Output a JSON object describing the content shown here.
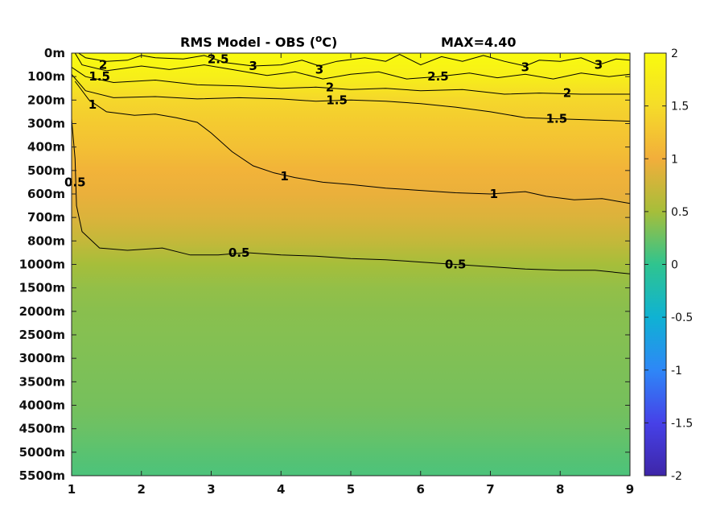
{
  "chart_data": {
    "type": "heatmap",
    "title": {
      "main": "RMS Model - OBS (",
      "sup": "o",
      "unit_close": "C)",
      "max_label": "MAX=4.40"
    },
    "x_ticks": [
      "1",
      "2",
      "3",
      "4",
      "5",
      "6",
      "7",
      "8",
      "9"
    ],
    "x_values": [
      1,
      2,
      3,
      4,
      5,
      6,
      7,
      8,
      9
    ],
    "xlim": [
      1,
      9
    ],
    "y_ticks": [
      "0m",
      "100m",
      "200m",
      "300m",
      "400m",
      "500m",
      "600m",
      "700m",
      "800m",
      "1000m",
      "1500m",
      "2000m",
      "2500m",
      "3000m",
      "3500m",
      "4000m",
      "4500m",
      "5000m",
      "5500m"
    ],
    "y_direction": "reversed",
    "colorbar": {
      "ticks": [
        "2",
        "1.5",
        "1",
        "0.5",
        "0",
        "-0.5",
        "-1",
        "-1.5",
        "-2"
      ],
      "range": [
        -2,
        2
      ],
      "colormap": "parula",
      "stops": [
        "#3e26a8",
        "#4641e8",
        "#2e87f7",
        "#0fb2d3",
        "#2fc48f",
        "#a6be3a",
        "#f2ae3b",
        "#f5dc29",
        "#f9fb0e"
      ]
    },
    "levels": [
      {
        "depth": "0m",
        "value": 2.6
      },
      {
        "depth": "100m",
        "value": 1.8
      },
      {
        "depth": "200m",
        "value": 1.45
      },
      {
        "depth": "300m",
        "value": 1.3
      },
      {
        "depth": "400m",
        "value": 1.2
      },
      {
        "depth": "500m",
        "value": 1.05
      },
      {
        "depth": "600m",
        "value": 0.95
      },
      {
        "depth": "700m",
        "value": 0.85
      },
      {
        "depth": "800m",
        "value": 0.7
      },
      {
        "depth": "1000m",
        "value": 0.5
      },
      {
        "depth": "1500m",
        "value": 0.42
      },
      {
        "depth": "2000m",
        "value": 0.38
      },
      {
        "depth": "2500m",
        "value": 0.36
      },
      {
        "depth": "3000m",
        "value": 0.34
      },
      {
        "depth": "3500m",
        "value": 0.32
      },
      {
        "depth": "4000m",
        "value": 0.3
      },
      {
        "depth": "4500m",
        "value": 0.25
      },
      {
        "depth": "5000m",
        "value": 0.18
      },
      {
        "depth": "5500m",
        "value": 0.12
      }
    ],
    "contour_labels": [
      {
        "text": "2",
        "x": 1.45,
        "y": 0.5
      },
      {
        "text": "1.5",
        "x": 1.4,
        "y": 1.0
      },
      {
        "text": "2.5",
        "x": 3.1,
        "y": 0.25
      },
      {
        "text": "3",
        "x": 3.6,
        "y": 0.55
      },
      {
        "text": "3",
        "x": 4.55,
        "y": 0.7
      },
      {
        "text": "2",
        "x": 4.7,
        "y": 1.45
      },
      {
        "text": "1.5",
        "x": 4.8,
        "y": 2.0
      },
      {
        "text": "2.5",
        "x": 6.25,
        "y": 1.0
      },
      {
        "text": "3",
        "x": 7.5,
        "y": 0.6
      },
      {
        "text": "3",
        "x": 8.55,
        "y": 0.5
      },
      {
        "text": "2",
        "x": 8.1,
        "y": 1.7
      },
      {
        "text": "1.5",
        "x": 7.95,
        "y": 2.8
      },
      {
        "text": "1",
        "x": 1.3,
        "y": 2.2
      },
      {
        "text": "1",
        "x": 4.05,
        "y": 5.25
      },
      {
        "text": "1",
        "x": 7.05,
        "y": 6.0
      },
      {
        "text": "0.5",
        "x": 1.05,
        "y": 5.5
      },
      {
        "text": "0.5",
        "x": 3.4,
        "y": 8.5
      },
      {
        "text": "0.5",
        "x": 6.5,
        "y": 9.0
      }
    ],
    "contours": [
      {
        "level": "3",
        "points": [
          [
            1.1,
            0
          ],
          [
            1.2,
            0.2
          ],
          [
            1.5,
            0.35
          ],
          [
            1.8,
            0.3
          ],
          [
            2.0,
            0.1
          ],
          [
            2.2,
            0.2
          ],
          [
            2.6,
            0.25
          ],
          [
            2.9,
            0.1
          ],
          [
            3.2,
            0.4
          ],
          [
            3.6,
            0.55
          ],
          [
            4.0,
            0.5
          ],
          [
            4.3,
            0.3
          ],
          [
            4.55,
            0.55
          ],
          [
            4.8,
            0.35
          ],
          [
            5.2,
            0.2
          ],
          [
            5.5,
            0.35
          ],
          [
            5.7,
            0.05
          ],
          [
            6.0,
            0.5
          ],
          [
            6.3,
            0.15
          ],
          [
            6.6,
            0.35
          ],
          [
            6.9,
            0.1
          ],
          [
            7.2,
            0.35
          ],
          [
            7.5,
            0.55
          ],
          [
            7.7,
            0.3
          ],
          [
            8.0,
            0.35
          ],
          [
            8.3,
            0.2
          ],
          [
            8.55,
            0.5
          ],
          [
            8.8,
            0.25
          ],
          [
            9,
            0.3
          ]
        ]
      },
      {
        "level": "2.5",
        "points": [
          [
            1.05,
            0
          ],
          [
            1.15,
            0.5
          ],
          [
            1.5,
            0.75
          ],
          [
            2.0,
            0.55
          ],
          [
            2.4,
            0.7
          ],
          [
            2.9,
            0.5
          ],
          [
            3.3,
            0.7
          ],
          [
            3.8,
            0.95
          ],
          [
            4.2,
            0.8
          ],
          [
            4.6,
            1.1
          ],
          [
            5.0,
            0.9
          ],
          [
            5.4,
            0.8
          ],
          [
            5.8,
            1.1
          ],
          [
            6.25,
            1.0
          ],
          [
            6.7,
            0.85
          ],
          [
            7.1,
            1.05
          ],
          [
            7.5,
            0.9
          ],
          [
            7.9,
            1.1
          ],
          [
            8.3,
            0.85
          ],
          [
            8.7,
            1.0
          ],
          [
            9,
            0.9
          ]
        ]
      },
      {
        "level": "2",
        "points": [
          [
            1.0,
            0.6
          ],
          [
            1.2,
            1.0
          ],
          [
            1.6,
            1.25
          ],
          [
            2.2,
            1.15
          ],
          [
            2.8,
            1.35
          ],
          [
            3.4,
            1.4
          ],
          [
            4.0,
            1.5
          ],
          [
            4.5,
            1.45
          ],
          [
            5.0,
            1.55
          ],
          [
            5.5,
            1.5
          ],
          [
            6.0,
            1.6
          ],
          [
            6.6,
            1.55
          ],
          [
            7.2,
            1.75
          ],
          [
            7.7,
            1.7
          ],
          [
            8.3,
            1.75
          ],
          [
            9,
            1.75
          ]
        ]
      },
      {
        "level": "1.5",
        "points": [
          [
            1.0,
            0.9
          ],
          [
            1.2,
            1.6
          ],
          [
            1.6,
            1.9
          ],
          [
            2.2,
            1.85
          ],
          [
            2.8,
            1.95
          ],
          [
            3.4,
            1.9
          ],
          [
            4.0,
            1.95
          ],
          [
            4.5,
            2.05
          ],
          [
            5.0,
            2.0
          ],
          [
            5.5,
            2.05
          ],
          [
            6.0,
            2.15
          ],
          [
            6.5,
            2.3
          ],
          [
            7.0,
            2.5
          ],
          [
            7.5,
            2.75
          ],
          [
            8.0,
            2.8
          ],
          [
            8.5,
            2.85
          ],
          [
            9,
            2.9
          ]
        ]
      },
      {
        "level": "1",
        "points": [
          [
            1.05,
            1.2
          ],
          [
            1.25,
            2.0
          ],
          [
            1.5,
            2.5
          ],
          [
            1.9,
            2.65
          ],
          [
            2.2,
            2.6
          ],
          [
            2.5,
            2.75
          ],
          [
            2.8,
            2.95
          ],
          [
            3.0,
            3.4
          ],
          [
            3.3,
            4.2
          ],
          [
            3.6,
            4.8
          ],
          [
            3.9,
            5.1
          ],
          [
            4.2,
            5.3
          ],
          [
            4.6,
            5.5
          ],
          [
            5.0,
            5.6
          ],
          [
            5.5,
            5.75
          ],
          [
            6.0,
            5.85
          ],
          [
            6.5,
            5.95
          ],
          [
            7.0,
            6.0
          ],
          [
            7.5,
            5.9
          ],
          [
            7.8,
            6.1
          ],
          [
            8.2,
            6.25
          ],
          [
            8.6,
            6.2
          ],
          [
            9,
            6.4
          ]
        ]
      },
      {
        "level": "0.5",
        "points": [
          [
            1.0,
            2.8
          ],
          [
            1.05,
            4.5
          ],
          [
            1.07,
            6.5
          ],
          [
            1.15,
            7.6
          ],
          [
            1.4,
            8.3
          ],
          [
            1.8,
            8.4
          ],
          [
            2.3,
            8.3
          ],
          [
            2.7,
            8.6
          ],
          [
            3.1,
            8.6
          ],
          [
            3.5,
            8.5
          ],
          [
            4.0,
            8.6
          ],
          [
            4.5,
            8.65
          ],
          [
            5.0,
            8.75
          ],
          [
            5.5,
            8.8
          ],
          [
            6.0,
            8.9
          ],
          [
            6.5,
            9.0
          ],
          [
            7.0,
            9.1
          ],
          [
            7.5,
            9.2
          ],
          [
            8.0,
            9.25
          ],
          [
            8.5,
            9.25
          ],
          [
            9,
            9.4
          ]
        ]
      }
    ]
  }
}
